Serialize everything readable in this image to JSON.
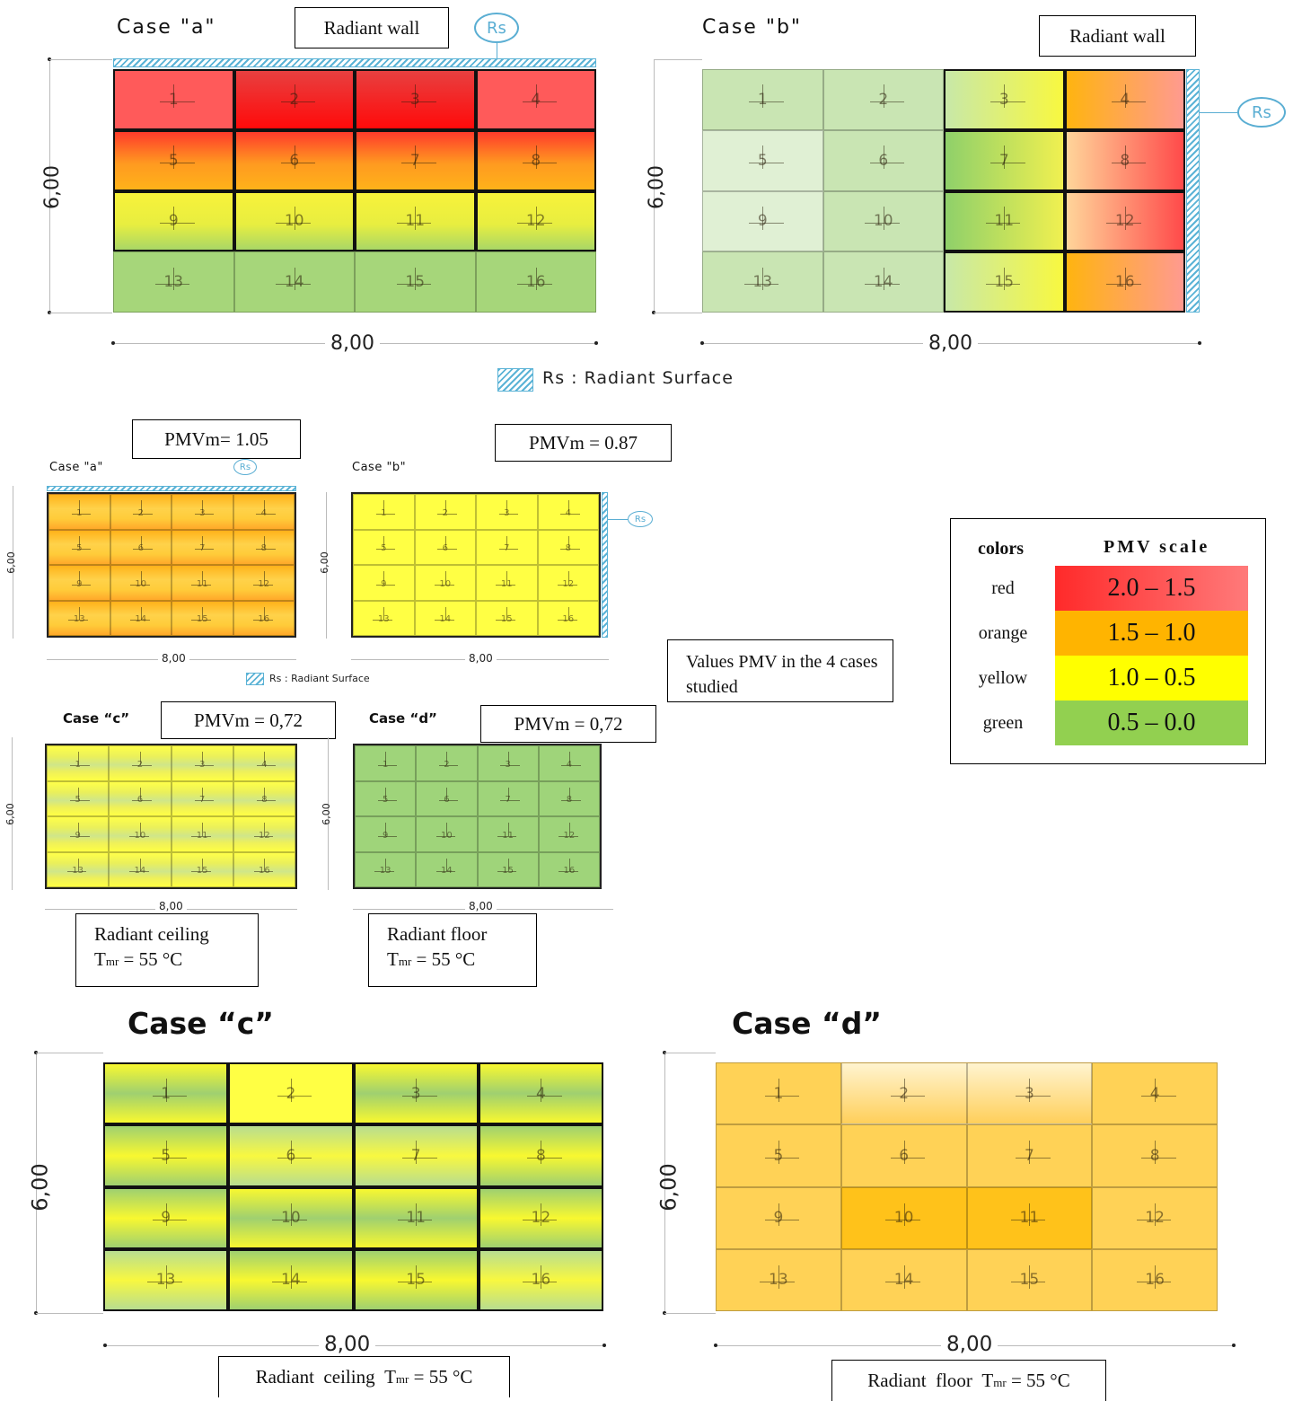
{
  "top": {
    "case_a_title": "Case \"a\"",
    "case_b_title": "Case \"b\"",
    "case_a_label": "Radiant  wall",
    "case_b_label": "Radiant wall",
    "rs": "Rs",
    "height_dim": "6,00",
    "width_dim": "8,00",
    "legend_text": "Rs : Radiant Surface"
  },
  "cells": [
    "1",
    "2",
    "3",
    "4",
    "5",
    "6",
    "7",
    "8",
    "9",
    "10",
    "11",
    "12",
    "13",
    "14",
    "15",
    "16"
  ],
  "middle": {
    "case_a_title": "Case \"a\"",
    "case_b_title": "Case \"b\"",
    "case_c_title": "Case “c”",
    "case_d_title": "Case “d”",
    "pmv_a": "PMVm= 1.05",
    "pmv_b": "PMVm = 0.87",
    "pmv_c": "PMVm = 0,72",
    "pmv_d": "PMVm = 0,72",
    "rs": "Rs",
    "height_dim": "6,00",
    "width_dim": "8,00",
    "legend_text": "Rs : Radiant Surface",
    "values_note": "Values PMV in the 4 cases studied",
    "ceiling_label": "Radiant   ceiling",
    "floor_label": "Radiant     floor",
    "tmr_prefix": "T",
    "tmr_sub": "mr",
    "tmr_value": " = 55 °C"
  },
  "legend": {
    "colors_header": "colors",
    "scale_header": "PMV scale",
    "rows": [
      {
        "color_name": "red",
        "range": "2.0 – 1.5",
        "color": "#ff2a2a"
      },
      {
        "color_name": "orange",
        "range": "1.5 – 1.0",
        "color": "#ffb400"
      },
      {
        "color_name": "yellow",
        "range": "1.0 – 0.5",
        "color": "#ffff00"
      },
      {
        "color_name": "green",
        "range": "0.5 – 0.0",
        "color": "#92d050"
      }
    ]
  },
  "bottom": {
    "case_c_title": "Case “c”",
    "case_d_title": "Case “d”",
    "height_dim": "6,00",
    "width_dim": "8,00",
    "ceiling_label": "Radiant  ceiling  ",
    "floor_label": "Radiant  floor  ",
    "tmr_prefix": "T",
    "tmr_sub": "mr",
    "tmr_value": " = 55 °C"
  }
}
